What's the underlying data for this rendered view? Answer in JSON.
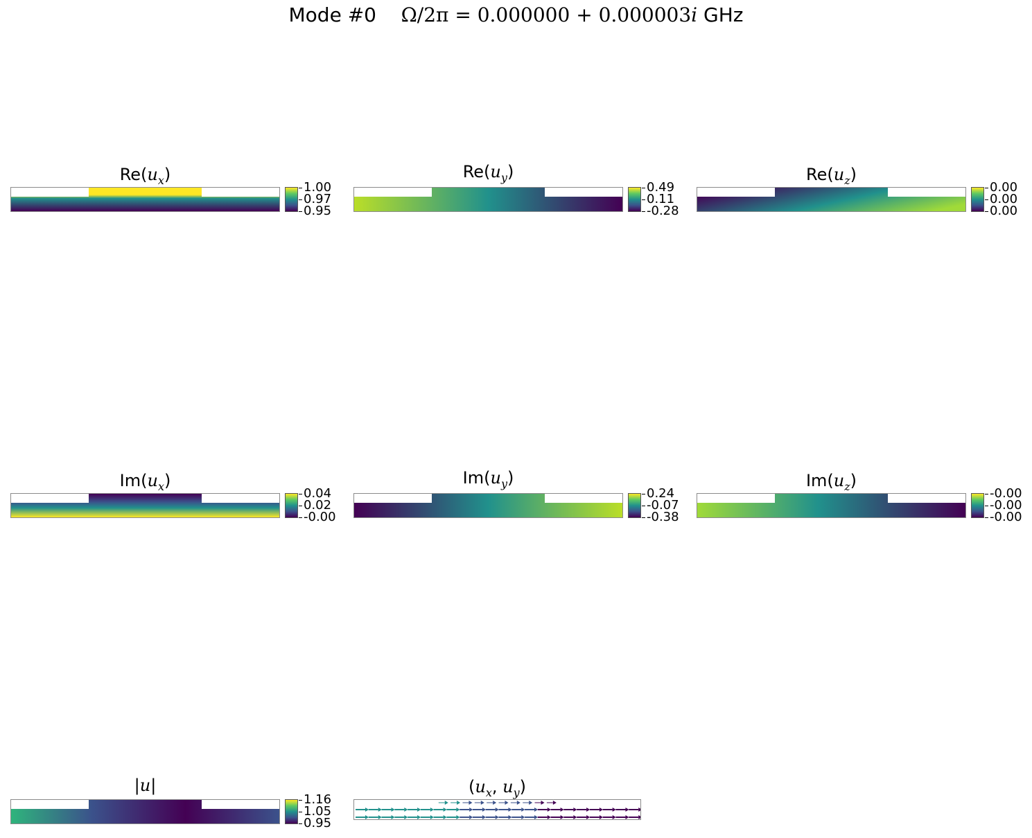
{
  "figure": {
    "suptitle": {
      "mode": "Mode #0",
      "omega": "Ω/2π = 0.000000 + 0.000003",
      "imag_unit": "i",
      "unit": "GHz"
    }
  },
  "colormap": "viridis",
  "colors": {
    "viridis": [
      "#440154",
      "#3b528b",
      "#21918c",
      "#5ec962",
      "#fde725"
    ],
    "frame": "#8a8a8a"
  },
  "chart_data": [
    {
      "type": "heatmap",
      "title_prefix": "Re(",
      "title_var": "u",
      "title_sub": "x",
      "title_suffix": ")",
      "colorbar_ticks": [
        "1.00",
        "0.97",
        "0.95"
      ],
      "vrange": [
        0.95,
        1.0
      ]
    },
    {
      "type": "heatmap",
      "title_prefix": "Re(",
      "title_var": "u",
      "title_sub": "y",
      "title_suffix": ")",
      "colorbar_ticks": [
        "0.49",
        "0.11",
        "-0.28"
      ],
      "vrange": [
        -0.28,
        0.49
      ]
    },
    {
      "type": "heatmap",
      "title_prefix": "Re(",
      "title_var": "u",
      "title_sub": "z",
      "title_suffix": ")",
      "colorbar_ticks": [
        "0.00",
        "0.00",
        "0.00"
      ],
      "vrange": [
        0.0,
        0.0
      ]
    },
    {
      "type": "heatmap",
      "title_prefix": "Im(",
      "title_var": "u",
      "title_sub": "x",
      "title_suffix": ")",
      "colorbar_ticks": [
        "0.04",
        "0.02",
        "-0.00"
      ],
      "vrange": [
        -0.0,
        0.04
      ]
    },
    {
      "type": "heatmap",
      "title_prefix": "Im(",
      "title_var": "u",
      "title_sub": "y",
      "title_suffix": ")",
      "colorbar_ticks": [
        "0.24",
        "-0.07",
        "-0.38"
      ],
      "vrange": [
        -0.38,
        0.24
      ]
    },
    {
      "type": "heatmap",
      "title_prefix": "Im(",
      "title_var": "u",
      "title_sub": "z",
      "title_suffix": ")",
      "colorbar_ticks": [
        "-0.00",
        "-0.00",
        "-0.00"
      ],
      "vrange": [
        -0.0,
        -0.0
      ]
    },
    {
      "type": "heatmap",
      "title_prefix": "|",
      "title_var": "u",
      "title_sub": "",
      "title_suffix": "|",
      "colorbar_ticks": [
        "1.16",
        "1.05",
        "0.95"
      ],
      "vrange": [
        0.95,
        1.16
      ]
    },
    {
      "type": "quiver",
      "title_prefix": "(",
      "title_var": "u",
      "title_sub": "x",
      "title_mid": ", ",
      "title_var2": "u",
      "title_sub2": "y",
      "title_suffix": ")",
      "colorbar_ticks": []
    }
  ]
}
